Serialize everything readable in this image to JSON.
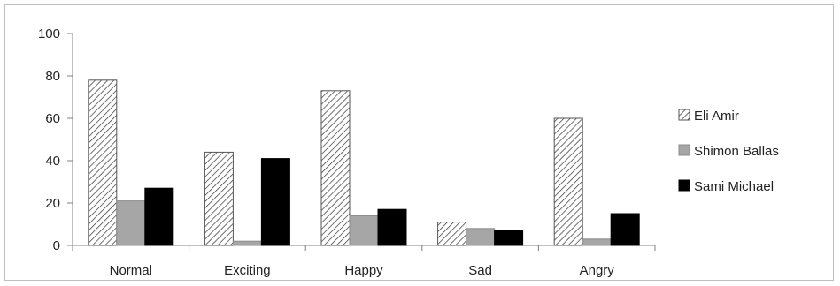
{
  "chart_data": {
    "type": "bar",
    "categories": [
      "Normal",
      "Exciting",
      "Happy",
      "Sad",
      "Angry"
    ],
    "series": [
      {
        "name": "Eli Amir",
        "values": [
          78,
          44,
          73,
          11,
          60
        ],
        "fill": "hatch"
      },
      {
        "name": "Shimon Ballas",
        "values": [
          21,
          2,
          14,
          8,
          3
        ],
        "fill": "#a6a6a6"
      },
      {
        "name": "Sami Michael",
        "values": [
          27,
          41,
          17,
          7,
          15
        ],
        "fill": "#000000"
      }
    ],
    "ylim": [
      0,
      100
    ],
    "yticks": [
      0,
      20,
      40,
      60,
      80,
      100
    ],
    "title": "",
    "xlabel": "",
    "ylabel": "",
    "grid": false,
    "legend_position": "right"
  }
}
